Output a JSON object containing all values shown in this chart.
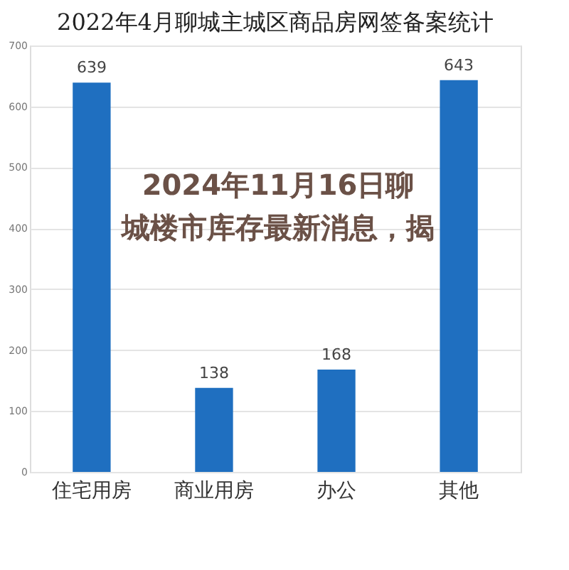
{
  "chart_data": {
    "type": "bar",
    "title": "2022年4月聊城主城区商品房网签备案统计",
    "categories": [
      "住宅用房",
      "商业用房",
      "办公",
      "其他"
    ],
    "values": [
      639,
      138,
      168,
      643
    ],
    "color": "#1f6fc0",
    "ylim": [
      0,
      700
    ],
    "yticks": [
      0,
      100,
      200,
      300,
      400,
      500,
      600,
      700
    ],
    "grid": "y",
    "data_labels": true,
    "annotations": [
      "2024年11月16日聊城楼市库存最新消息，揭"
    ]
  }
}
